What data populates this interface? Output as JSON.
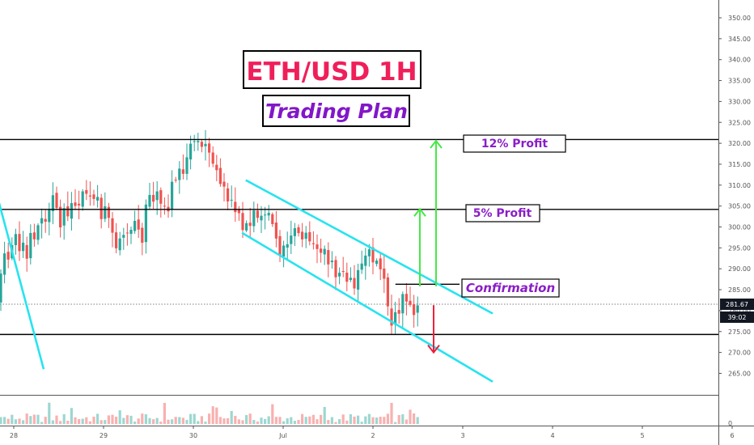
{
  "chart_data": {
    "type": "candlestick",
    "title": "ETH/USD 1H",
    "subtitle": "Trading Plan",
    "symbol": "ETH/USD",
    "timeframe": "1H",
    "ylim": [
      260,
      354
    ],
    "y_ticks": [
      "265.00",
      "270.00",
      "275.00",
      "280.00",
      "285.00",
      "290.00",
      "295.00",
      "300.00",
      "305.00",
      "310.00",
      "315.00",
      "320.00",
      "325.00",
      "330.00",
      "335.00",
      "340.00",
      "345.00",
      "350.00"
    ],
    "x_ticks": [
      "28",
      "29",
      "30",
      "Jul",
      "2",
      "3",
      "4",
      "5",
      "6"
    ],
    "current_price": "281.67",
    "countdown": "39:02",
    "volume_axis_label": "0",
    "levels": [
      {
        "price": 320.9,
        "label": "12% Profit"
      },
      {
        "price": 304.2,
        "label": "5% Profit"
      },
      {
        "price": 274.3,
        "label": ""
      }
    ],
    "confirmation": {
      "price": 286.3,
      "label": "Confirmation"
    },
    "channel": {
      "upper": {
        "from": [
          "2019-06-30T14:00",
          311.2
        ],
        "to": [
          "2019-07-03T08:00",
          279.3
        ]
      },
      "lower": {
        "from": [
          "2019-06-30T13:00",
          298.6
        ],
        "to": [
          "2019-07-03T08:00",
          263.0
        ]
      }
    },
    "left_line": {
      "from": [
        "2019-06-27T20:00",
        306.0
      ],
      "to": [
        "2019-06-28T08:00",
        266.0
      ]
    },
    "arrows": [
      {
        "direction": "up",
        "from": 285.8,
        "to": 304.3,
        "color": "#45e845"
      },
      {
        "direction": "up",
        "from": 285.8,
        "to": 320.6,
        "color": "#45e845"
      },
      {
        "direction": "down",
        "from": 281.3,
        "to": 270.0,
        "color": "#ef1f3c"
      }
    ],
    "colors": {
      "up": "#26a69a",
      "down": "#ef5350",
      "channel": "#27e3ef",
      "level": "#000000"
    },
    "grid": false
  }
}
